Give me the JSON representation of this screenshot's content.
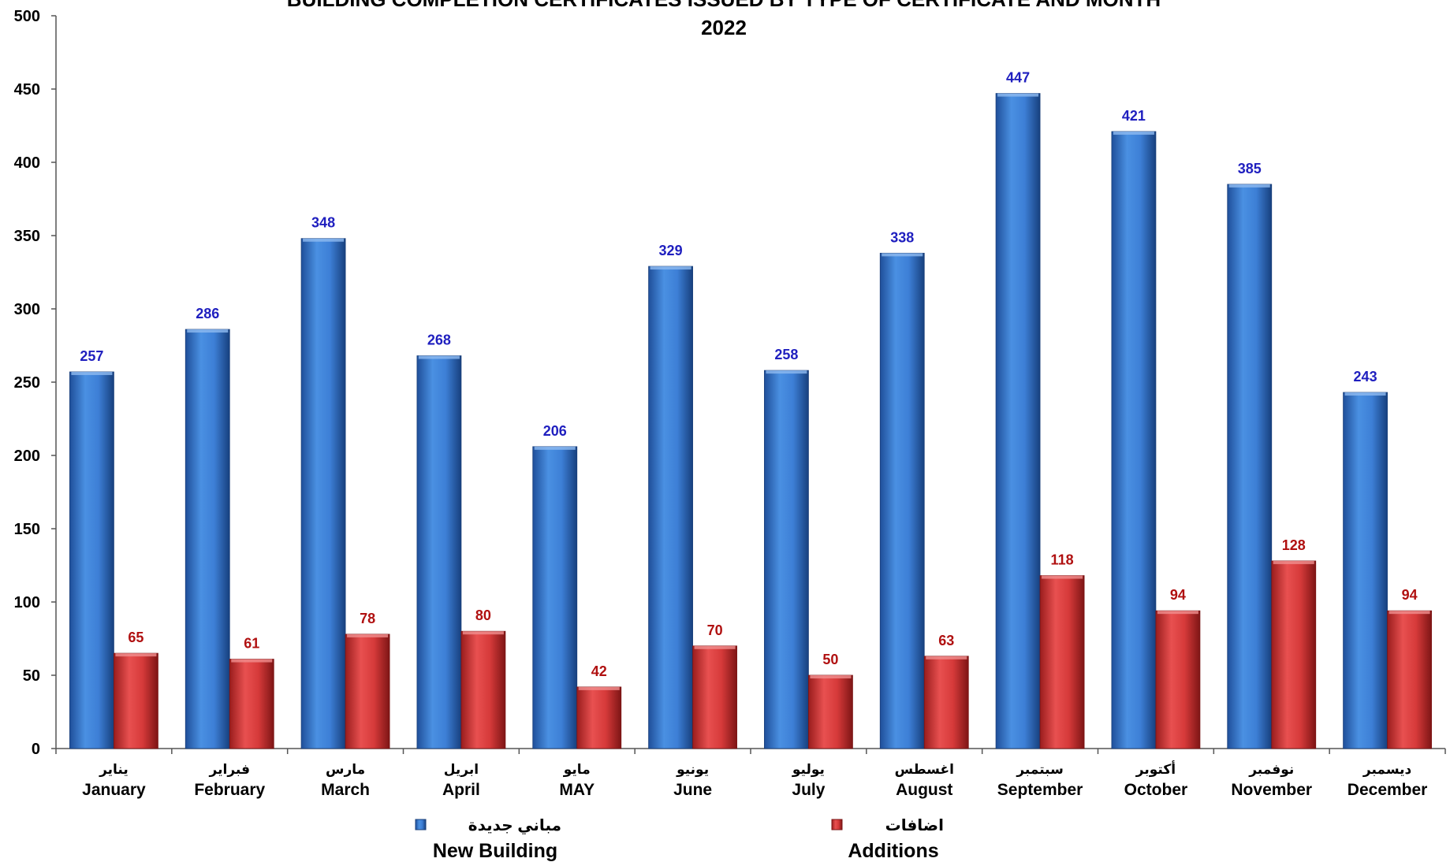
{
  "chart_data": {
    "type": "bar",
    "title_line1": "BUILDING COMPLETION CERTIFICATES ISSUED BY TYPE OF CERTIFICATE AND MONTH",
    "title_line2": "2022",
    "categories": [
      "January",
      "February",
      "March",
      "April",
      "MAY",
      "June",
      "July",
      "August",
      "September",
      "October",
      "November",
      "December"
    ],
    "categories_ar": [
      "يناير",
      "فبراير",
      "مارس",
      "ابريل",
      "مايو",
      "يونيو",
      "يوليو",
      "اغسطس",
      "سبتمبر",
      "أكتوبر",
      "نوفمبر",
      "ديسمبر"
    ],
    "series": [
      {
        "name": "New Building",
        "name_ar": "مباني جديدة",
        "color": "#3d7fd6",
        "values": [
          257,
          286,
          348,
          268,
          206,
          329,
          258,
          338,
          447,
          421,
          385,
          243
        ]
      },
      {
        "name": "Additions",
        "name_ar": "اضافات",
        "color": "#d63a3a",
        "values": [
          65,
          61,
          78,
          80,
          42,
          70,
          50,
          63,
          118,
          94,
          128,
          94
        ]
      }
    ],
    "ylim": [
      0,
      500
    ],
    "yticks": [
      0,
      50,
      100,
      150,
      200,
      250,
      300,
      350,
      400,
      450,
      500
    ],
    "grid": false,
    "legend_position": "bottom"
  }
}
